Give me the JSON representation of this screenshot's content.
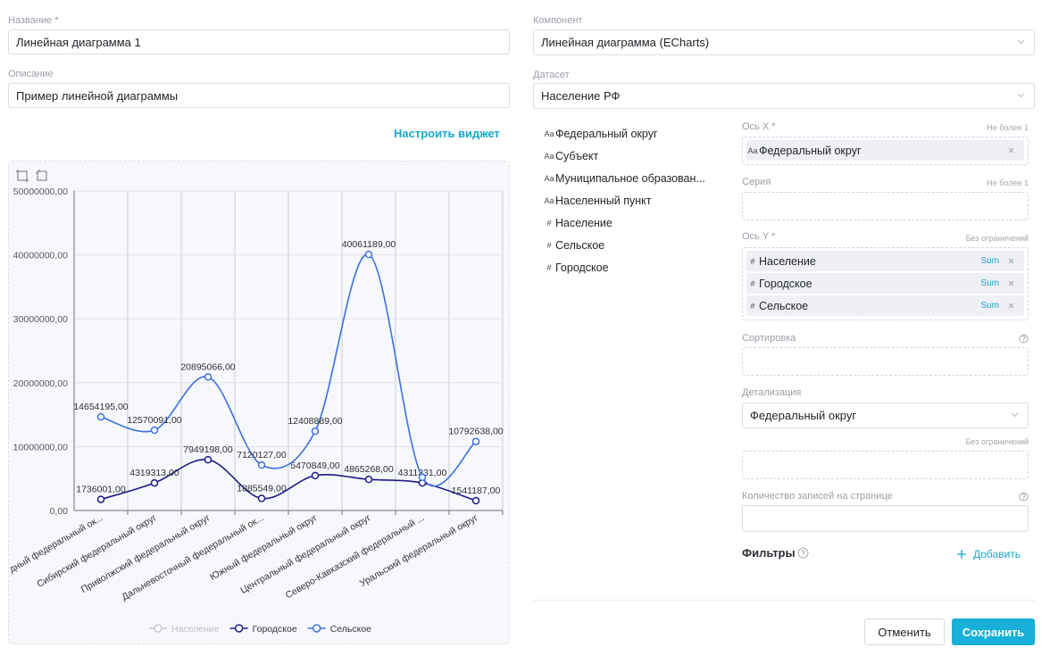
{
  "form": {
    "name": {
      "label": "Название *",
      "value": "Линейная диаграмма 1"
    },
    "description": {
      "label": "Описание",
      "value": "Пример линейной диаграммы"
    },
    "configure_link": "Настроить виджет"
  },
  "chart_data": {
    "type": "line",
    "categories": [
      "дный федеральный ок...",
      "Сибирский федеральный округ",
      "Приволжский федеральный округ",
      "Дальневосточный федеральный ок...",
      "Южный федеральный округ",
      "Центральный федеральный округ",
      "Северо-Кавказский федеральный ...",
      "Уральский федеральный округ"
    ],
    "series": [
      {
        "name": "Население",
        "color": "#c8c9cf",
        "visible": false,
        "values": [
          null,
          null,
          null,
          null,
          null,
          null,
          null,
          null
        ]
      },
      {
        "name": "Городское",
        "color": "#1e1a8a",
        "visible": true,
        "values": [
          1736001,
          4319313,
          7949198,
          1885549,
          5470849,
          4865268,
          4311331,
          1541187
        ],
        "value_labels": [
          "1736001,00",
          "4319313,00",
          "7949198,00",
          "1885549,00",
          "5470849,00",
          "4865268,00",
          "4311331,00",
          "1541187,00"
        ]
      },
      {
        "name": "Сельское",
        "color": "#3b6fe0",
        "visible": true,
        "values": [
          14654195,
          12570091,
          20895066,
          7120127,
          12408889,
          40061189,
          5200000,
          10792638
        ],
        "value_labels": [
          "14654195,00",
          "12570091,00",
          "20895066,00",
          "7120127,00",
          "12408889,00",
          "40061189,00",
          null,
          "10792638,00"
        ]
      }
    ],
    "ylim": [
      0,
      50000000
    ],
    "yticks": [
      {
        "value": 0,
        "label": "0,00"
      },
      {
        "value": 10000000,
        "label": "10000000,00"
      },
      {
        "value": 20000000,
        "label": "20000000,00"
      },
      {
        "value": 30000000,
        "label": "30000000,00"
      },
      {
        "value": 40000000,
        "label": "40000000,00"
      },
      {
        "value": 50000000,
        "label": "50000000,00"
      }
    ],
    "grid": true
  },
  "settings": {
    "component": {
      "label": "Компонент",
      "value": "Линейная диаграмма (ECharts)"
    },
    "dataset": {
      "label": "Датасет",
      "value": "Население РФ"
    },
    "fields": [
      {
        "icon": "Aa",
        "label": "Федеральный округ"
      },
      {
        "icon": "Aa",
        "label": "Субъект"
      },
      {
        "icon": "Aa",
        "label": "Муниципальное образован..."
      },
      {
        "icon": "Aa",
        "label": "Населенный пункт"
      },
      {
        "icon": "#",
        "label": "Население"
      },
      {
        "icon": "#",
        "label": "Сельское"
      },
      {
        "icon": "#",
        "label": "Городское"
      }
    ],
    "x_axis": {
      "label": "Ось X *",
      "hint": "Не более 1",
      "items": [
        {
          "icon": "Aa",
          "label": "Федеральный округ"
        }
      ]
    },
    "series": {
      "label": "Серия",
      "hint": "Не более 1"
    },
    "y_axis": {
      "label": "Ось Y *",
      "hint": "Без ограничений",
      "items": [
        {
          "icon": "#",
          "label": "Население",
          "aggregation": "Sum"
        },
        {
          "icon": "#",
          "label": "Городское",
          "aggregation": "Sum"
        },
        {
          "icon": "#",
          "label": "Сельское",
          "aggregation": "Sum"
        }
      ]
    },
    "sorting": {
      "label": "Сортировка"
    },
    "detail": {
      "label": "Детализация",
      "value": "Федеральный округ"
    },
    "extra": {
      "hint": "Без ограничений"
    },
    "page_size": {
      "label": "Количество записей на странице"
    },
    "filters": {
      "label": "Фильтры",
      "add": "Добавить"
    }
  },
  "buttons": {
    "cancel": "Отменить",
    "save": "Сохранить"
  }
}
